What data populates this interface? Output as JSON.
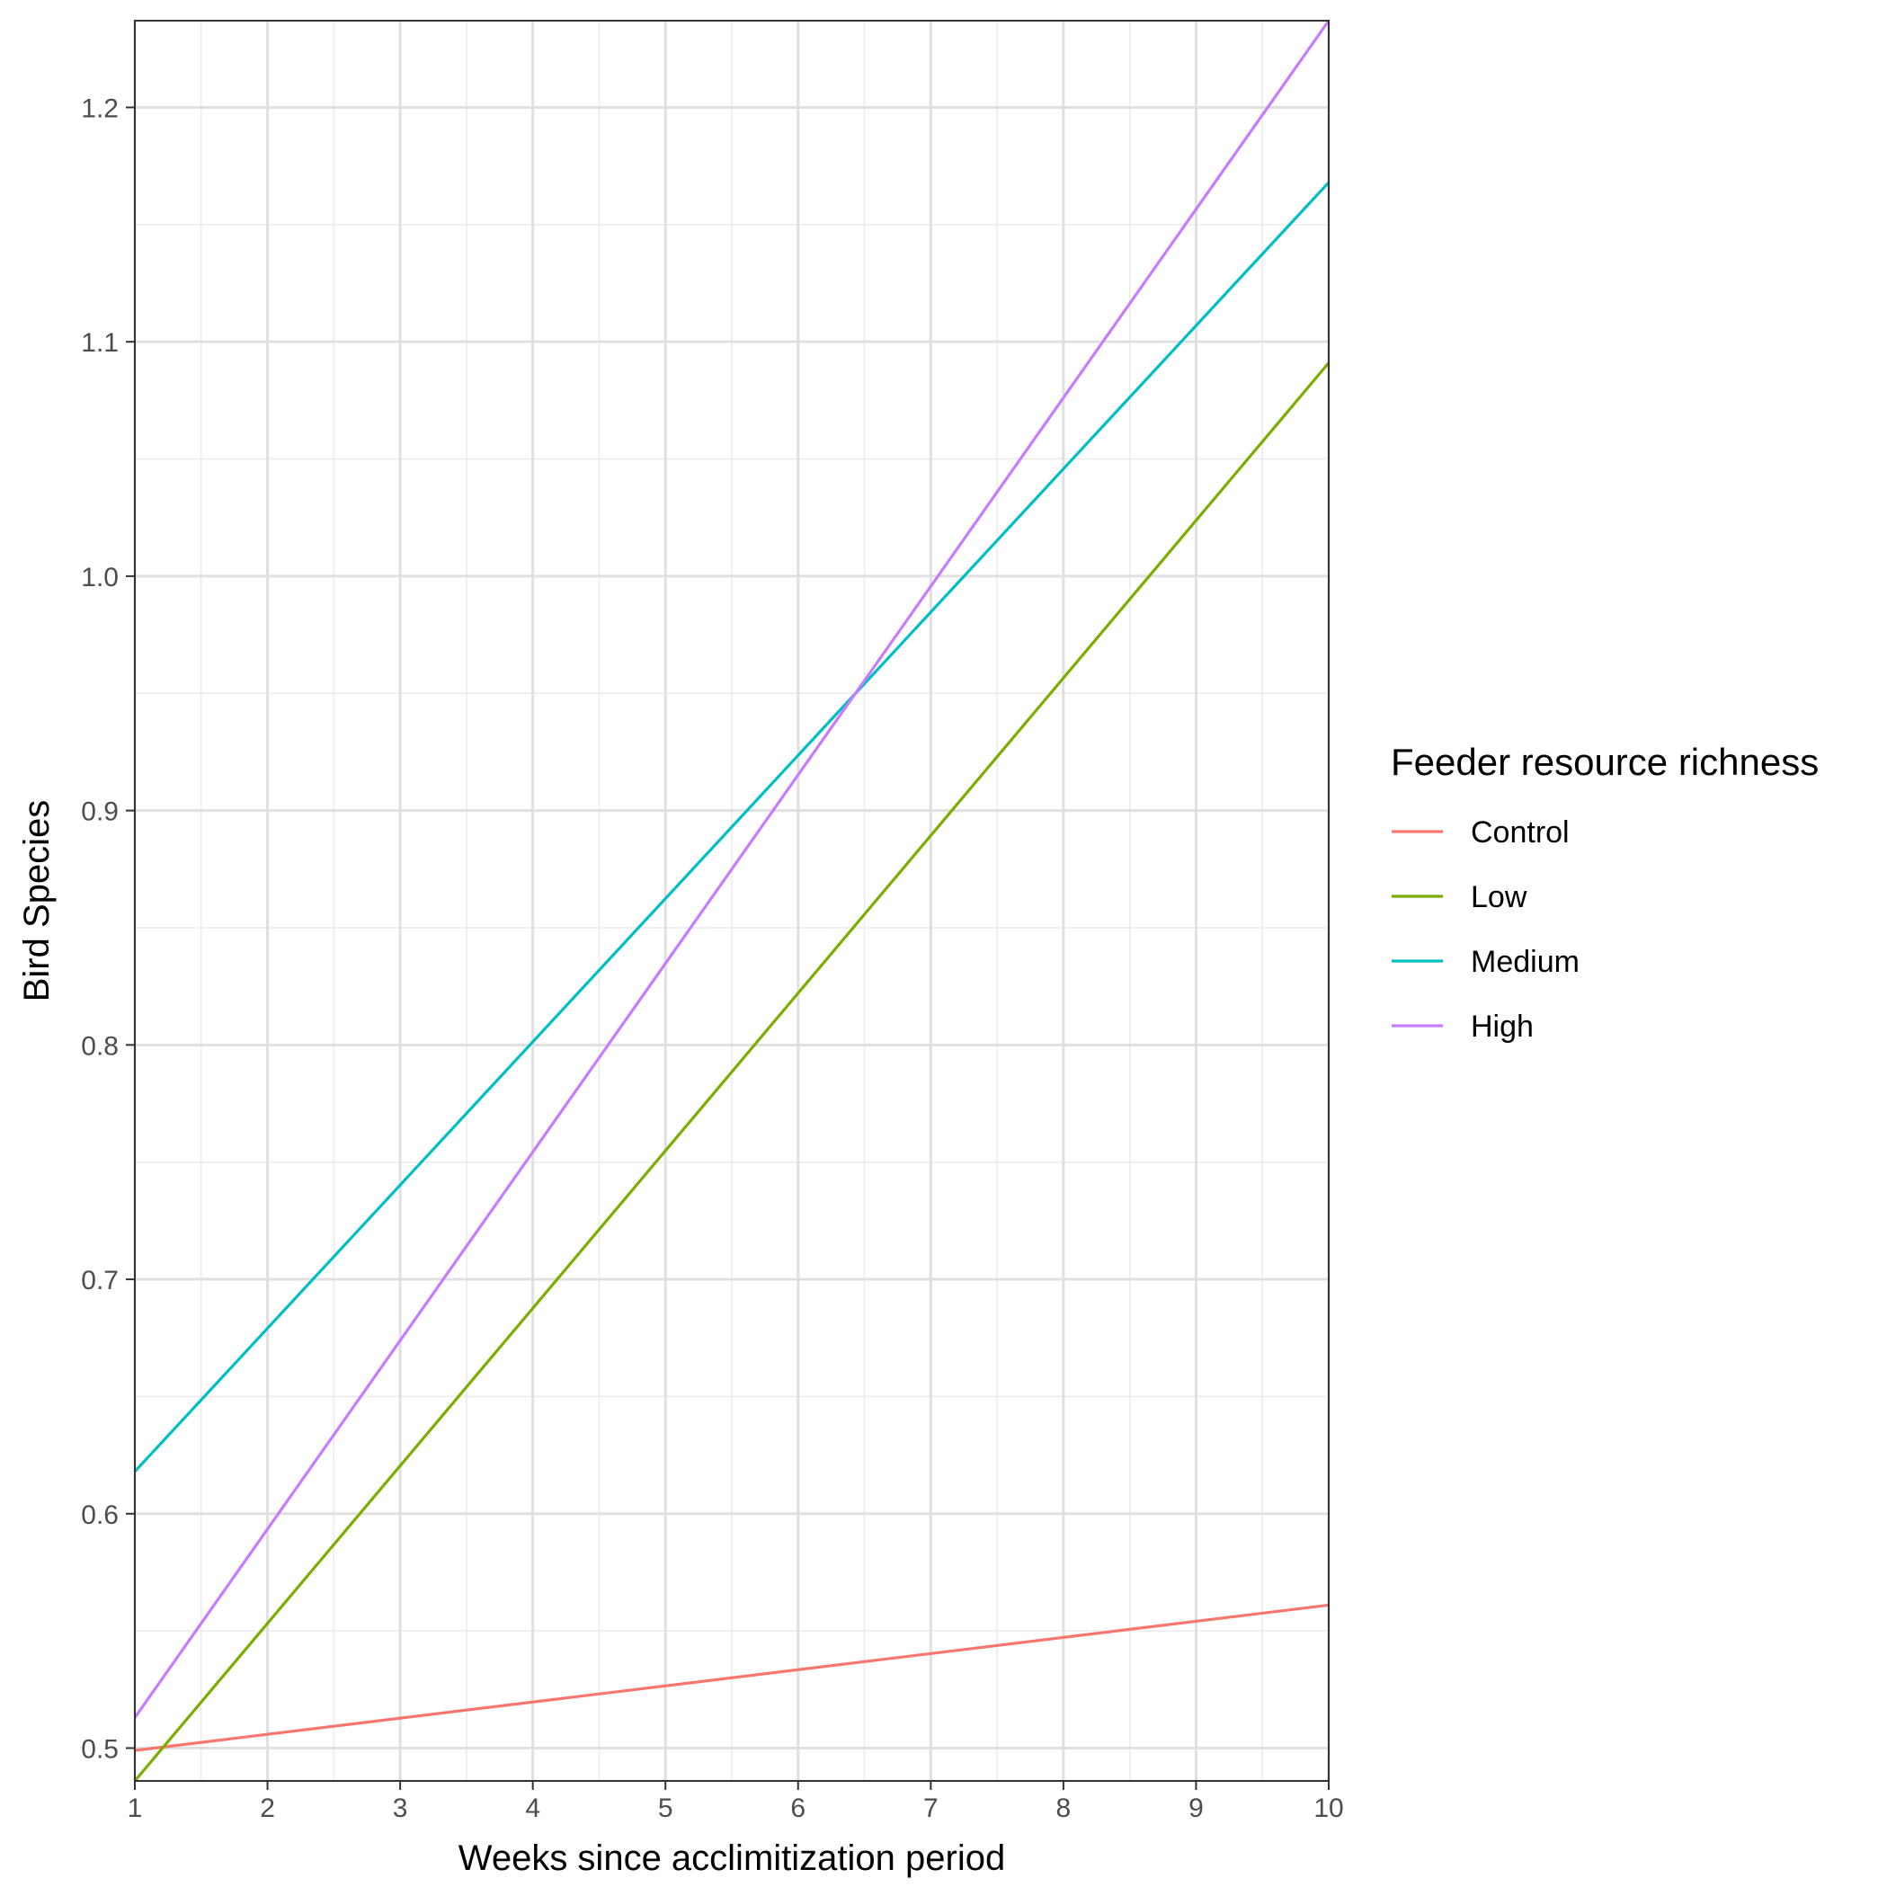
{
  "chart_data": {
    "type": "line",
    "xlabel": "Weeks since acclimitization period",
    "ylabel": "Bird Species",
    "xlim": [
      1,
      10
    ],
    "ylim": [
      0.486,
      1.237
    ],
    "x_ticks": [
      1,
      2,
      3,
      4,
      5,
      6,
      7,
      8,
      9,
      10
    ],
    "y_ticks": [
      0.5,
      0.6,
      0.7,
      0.8,
      0.9,
      1.0,
      1.1,
      1.2
    ],
    "y_tick_labels": [
      "0.5",
      "0.6",
      "0.7",
      "0.8",
      "0.9",
      "1.0",
      "1.1",
      "1.2"
    ],
    "grid": true,
    "legend": {
      "title": "Feeder resource richness",
      "position": "right"
    },
    "series": [
      {
        "name": "Control",
        "color": "#F8766D",
        "x": [
          1,
          10
        ],
        "y": [
          0.499,
          0.561
        ]
      },
      {
        "name": "Low",
        "color": "#7CAE00",
        "x": [
          1,
          10
        ],
        "y": [
          0.486,
          1.091
        ]
      },
      {
        "name": "Medium",
        "color": "#00BFC4",
        "x": [
          1,
          10
        ],
        "y": [
          0.618,
          1.168
        ]
      },
      {
        "name": "High",
        "color": "#C77CFF",
        "x": [
          1,
          10
        ],
        "y": [
          0.513,
          1.237
        ]
      }
    ]
  }
}
